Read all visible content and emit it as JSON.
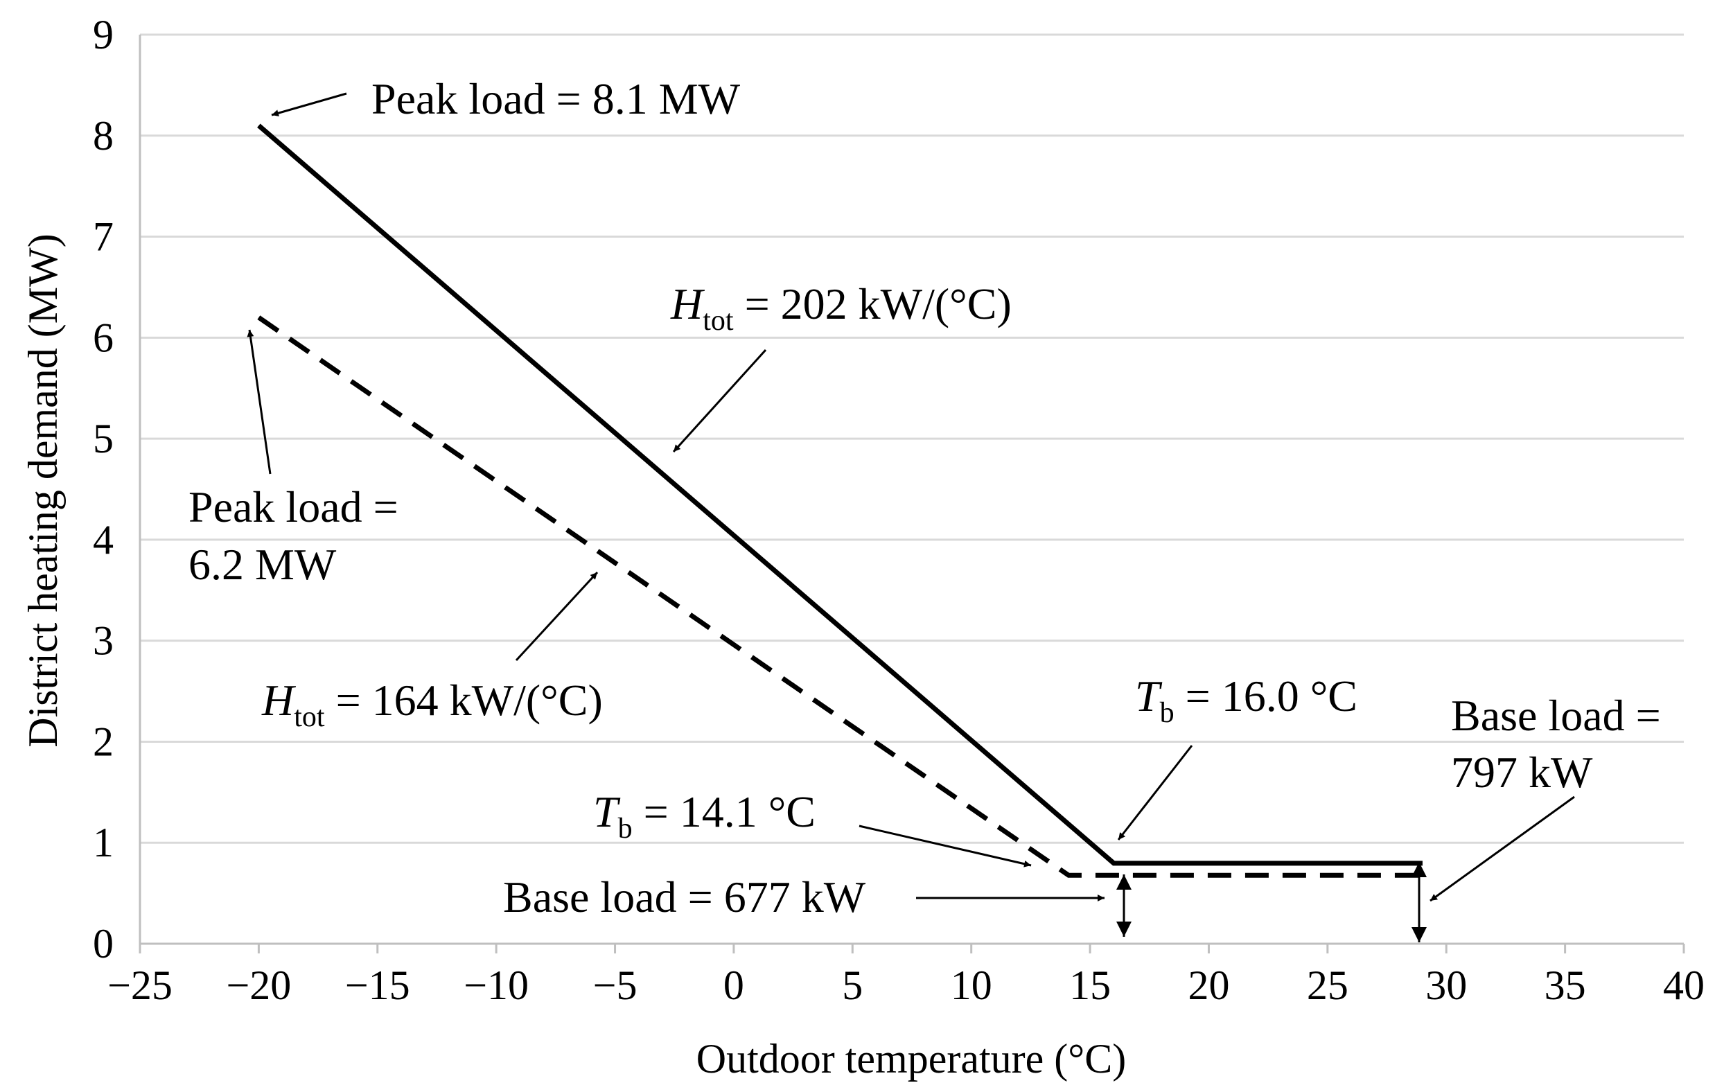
{
  "chart_data": {
    "type": "line",
    "title": "",
    "xlabel": "Outdoor temperature (°C)",
    "ylabel": "District heating demand (MW)",
    "xlim": [
      -25,
      40
    ],
    "ylim": [
      0,
      9
    ],
    "x_ticks": [
      -25,
      -20,
      -15,
      -10,
      -5,
      0,
      5,
      10,
      15,
      20,
      25,
      30,
      35,
      40
    ],
    "x_tick_labels": [
      "−25",
      "−20",
      "−15",
      "−10",
      "−5",
      "0",
      "5",
      "10",
      "15",
      "20",
      "25",
      "30",
      "35",
      "40"
    ],
    "y_ticks": [
      0,
      1,
      2,
      3,
      4,
      5,
      6,
      7,
      8,
      9
    ],
    "y_tick_labels": [
      "0",
      "1",
      "2",
      "3",
      "4",
      "5",
      "6",
      "7",
      "8",
      "9"
    ],
    "grid": "horizontal",
    "series": [
      {
        "name": "H_tot = 202 kW/(°C)",
        "style": "solid",
        "x": [
          -20,
          16.0,
          29
        ],
        "y": [
          8.1,
          0.797,
          0.797
        ]
      },
      {
        "name": "H_tot = 164 kW/(°C)",
        "style": "dashed",
        "x": [
          -20,
          14.1,
          29
        ],
        "y": [
          6.2,
          0.677,
          0.677
        ]
      }
    ],
    "annotations": {
      "peak_solid": "Peak load = 8.1 MW",
      "peak_dashed_line1": "Peak load =",
      "peak_dashed_line2": "6.2 MW",
      "htot_solid_symbol": "H",
      "htot_solid_sub": "tot",
      "htot_solid_value": " = 202 kW/(°C)",
      "htot_dashed_symbol": "H",
      "htot_dashed_sub": "tot",
      "htot_dashed_value": " = 164 kW/(°C)",
      "tb_solid_symbol": "T",
      "tb_solid_sub": "b",
      "tb_solid_value": " = 16.0 °C",
      "tb_dashed_symbol": "T",
      "tb_dashed_sub": "b",
      "tb_dashed_value": " = 14.1 °C",
      "base_dashed": "Base load = 677 kW",
      "base_solid_line1": "Base load =",
      "base_solid_line2": "797 kW"
    },
    "colors": {
      "line": "#000000",
      "grid": "#d9d9d9",
      "axis": "#bfbfbf"
    }
  }
}
